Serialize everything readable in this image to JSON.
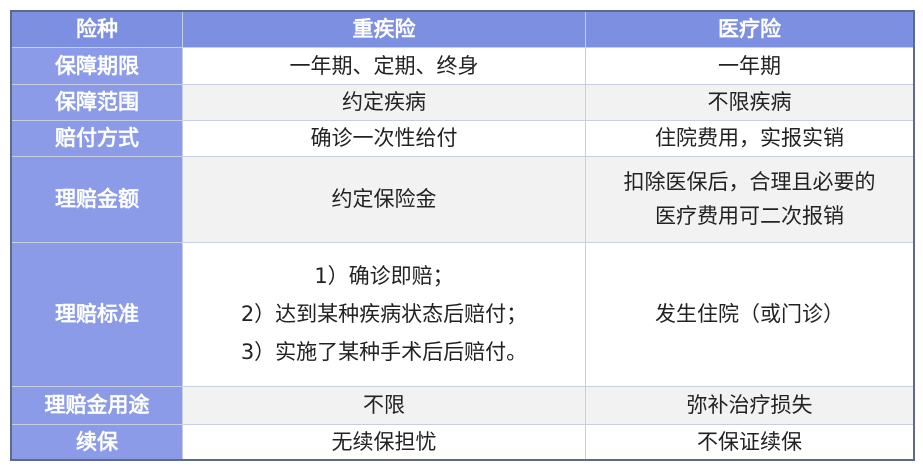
{
  "header": {
    "label": "险种",
    "col1": "重疾险",
    "col2": "医疗险"
  },
  "rows": [
    {
      "label": "保障期限",
      "col1": [
        "一年期、定期、终身"
      ],
      "col2": [
        "一年期"
      ]
    },
    {
      "label": "保障范围",
      "col1": [
        "约定疾病"
      ],
      "col2": [
        "不限疾病"
      ]
    },
    {
      "label": "赔付方式",
      "col1": [
        "确诊一次性给付"
      ],
      "col2": [
        "住院费用，实报实销"
      ]
    },
    {
      "label": "理赔金额",
      "col1": [
        "约定保险金"
      ],
      "col2": [
        "扣除医保后，合理且必要的",
        "医疗费用可二次报销"
      ]
    },
    {
      "label": "理赔标准",
      "col1": [
        "1）确诊即赔；",
        "2）达到某种疾病状态后赔付；",
        "3）实施了某种手术后后赔付。"
      ],
      "col2": [
        "发生住院（或门诊）"
      ]
    },
    {
      "label": "理赔金用途",
      "col1": [
        "不限"
      ],
      "col2": [
        "弥补治疗损失"
      ]
    },
    {
      "label": "续保",
      "col1": [
        "无续保担忧"
      ],
      "col2": [
        "不保证续保"
      ]
    }
  ]
}
